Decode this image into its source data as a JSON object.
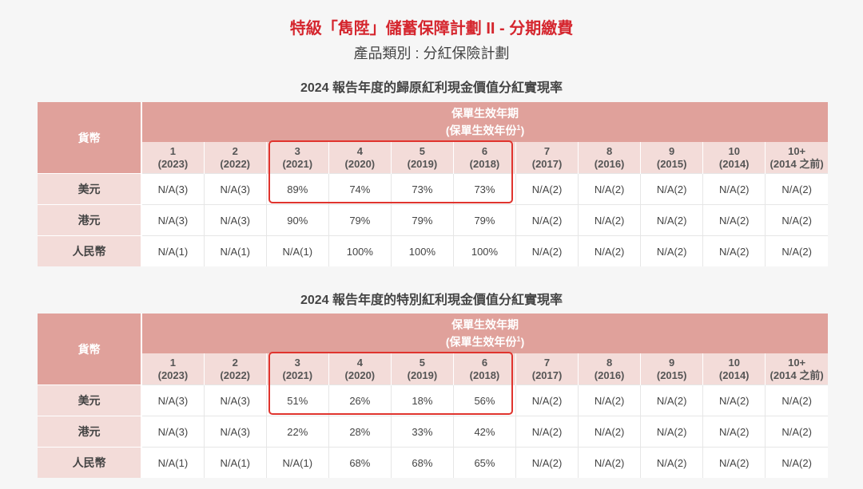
{
  "header": {
    "title": "特級「雋陞」儲蓄保障計劃 II - 分期繳費",
    "subtitle": "產品類別 : 分紅保險計劃"
  },
  "table_header": {
    "currency_label": "貨幣",
    "period_line1": "保單生效年期",
    "period_line2": "(保單生效年份",
    "period_sup": "1",
    "period_close": ")"
  },
  "years": [
    {
      "n": "1",
      "y": "(2023)"
    },
    {
      "n": "2",
      "y": "(2022)"
    },
    {
      "n": "3",
      "y": "(2021)"
    },
    {
      "n": "4",
      "y": "(2020)"
    },
    {
      "n": "5",
      "y": "(2019)"
    },
    {
      "n": "6",
      "y": "(2018)"
    },
    {
      "n": "7",
      "y": "(2017)"
    },
    {
      "n": "8",
      "y": "(2016)"
    },
    {
      "n": "9",
      "y": "(2015)"
    },
    {
      "n": "10",
      "y": "(2014)"
    },
    {
      "n": "10+",
      "y": "(2014 之前)"
    }
  ],
  "tables": [
    {
      "title": "2024 報告年度的歸原紅利現金價值分紅實現率",
      "rows": [
        {
          "currency": "美元",
          "values": [
            "N/A(3)",
            "N/A(3)",
            "89%",
            "74%",
            "73%",
            "73%",
            "N/A(2)",
            "N/A(2)",
            "N/A(2)",
            "N/A(2)",
            "N/A(2)"
          ]
        },
        {
          "currency": "港元",
          "values": [
            "N/A(3)",
            "N/A(3)",
            "90%",
            "79%",
            "79%",
            "79%",
            "N/A(2)",
            "N/A(2)",
            "N/A(2)",
            "N/A(2)",
            "N/A(2)"
          ]
        },
        {
          "currency": "人民幣",
          "values": [
            "N/A(1)",
            "N/A(1)",
            "N/A(1)",
            "100%",
            "100%",
            "100%",
            "N/A(2)",
            "N/A(2)",
            "N/A(2)",
            "N/A(2)",
            "N/A(2)"
          ]
        }
      ]
    },
    {
      "title": "2024 報告年度的特別紅利現金價值分紅實現率",
      "rows": [
        {
          "currency": "美元",
          "values": [
            "N/A(3)",
            "N/A(3)",
            "51%",
            "26%",
            "18%",
            "56%",
            "N/A(2)",
            "N/A(2)",
            "N/A(2)",
            "N/A(2)",
            "N/A(2)"
          ]
        },
        {
          "currency": "港元",
          "values": [
            "N/A(3)",
            "N/A(3)",
            "22%",
            "28%",
            "33%",
            "42%",
            "N/A(2)",
            "N/A(2)",
            "N/A(2)",
            "N/A(2)",
            "N/A(2)"
          ]
        },
        {
          "currency": "人民幣",
          "values": [
            "N/A(1)",
            "N/A(1)",
            "N/A(1)",
            "68%",
            "68%",
            "65%",
            "N/A(2)",
            "N/A(2)",
            "N/A(2)",
            "N/A(2)",
            "N/A(2)"
          ]
        }
      ]
    }
  ],
  "colors": {
    "title": "#d5262e",
    "header_bg": "#e0a19b",
    "subheader_bg": "#f3dcd9",
    "highlight_border": "#e0342e"
  }
}
